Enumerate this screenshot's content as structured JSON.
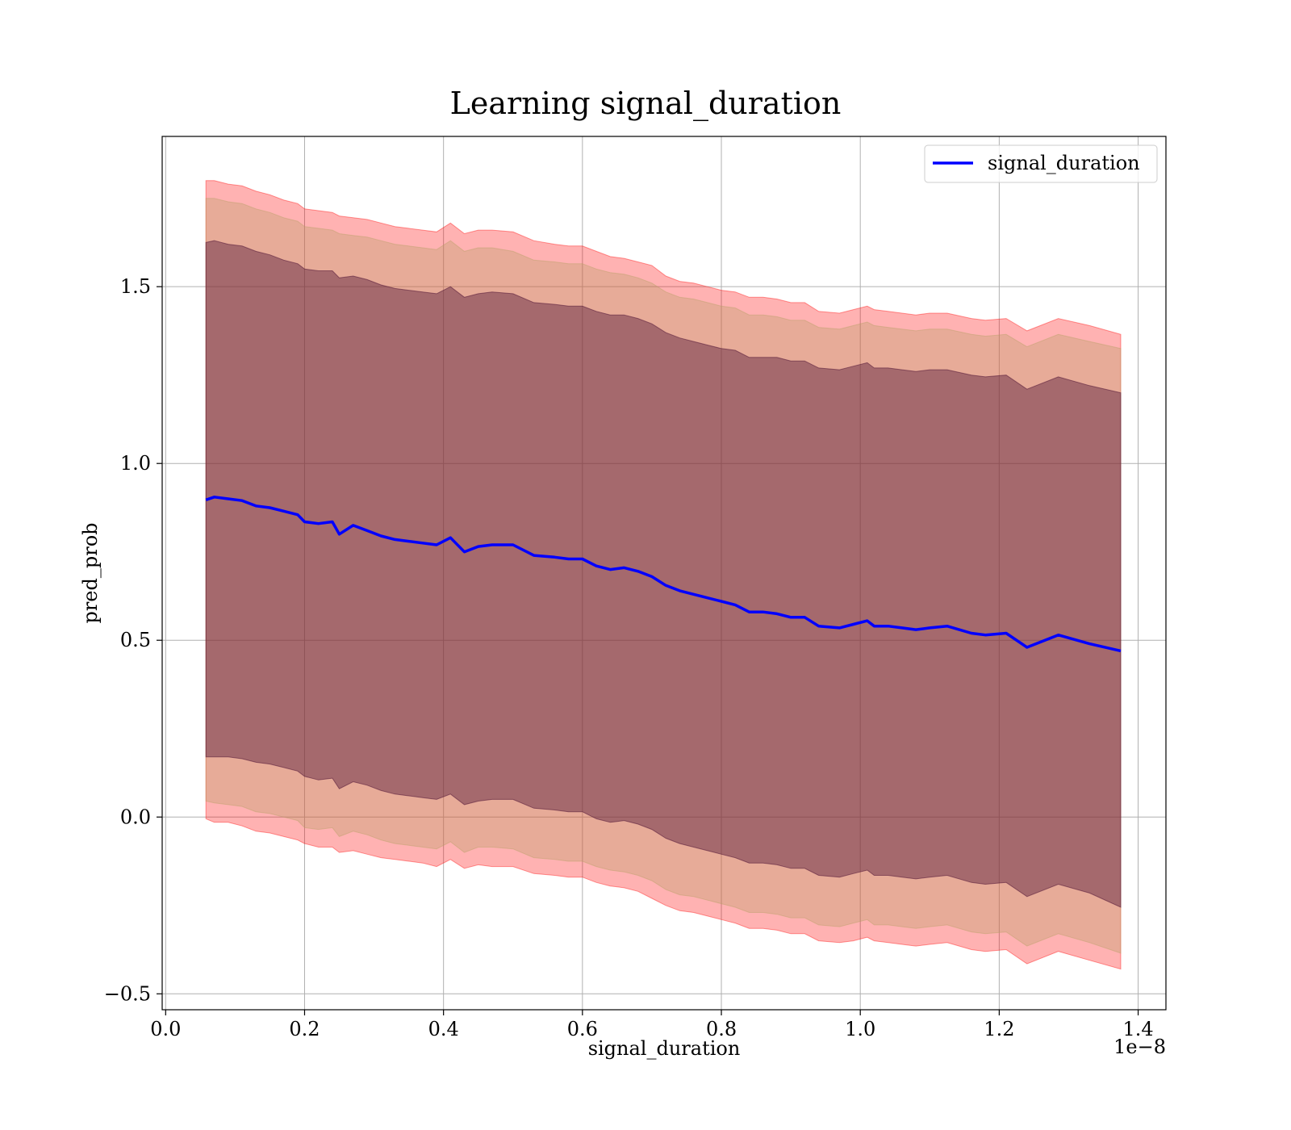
{
  "chart_data": {
    "type": "line",
    "title": "Learning signal_duration",
    "xlabel": "signal_duration",
    "ylabel": "pred_prob",
    "x_offset_label": "1e−8",
    "xlim": [
      -0.005,
      1.44
    ],
    "ylim": [
      -0.545,
      1.925
    ],
    "xticks": [
      0.0,
      0.2,
      0.4,
      0.6,
      0.8,
      1.0,
      1.2,
      1.4
    ],
    "xtick_labels": [
      "0.0",
      "0.2",
      "0.4",
      "0.6",
      "0.8",
      "1.0",
      "1.2",
      "1.4"
    ],
    "yticks": [
      -0.5,
      0.0,
      0.5,
      1.0,
      1.5
    ],
    "ytick_labels": [
      "−0.5",
      "0.0",
      "0.5",
      "1.0",
      "1.5"
    ],
    "grid": true,
    "legend_position": "top-right",
    "x": [
      0.058,
      0.07,
      0.09,
      0.11,
      0.13,
      0.15,
      0.17,
      0.19,
      0.2,
      0.22,
      0.24,
      0.25,
      0.27,
      0.29,
      0.31,
      0.33,
      0.35,
      0.37,
      0.39,
      0.41,
      0.43,
      0.45,
      0.47,
      0.5,
      0.53,
      0.56,
      0.58,
      0.6,
      0.62,
      0.64,
      0.66,
      0.68,
      0.7,
      0.72,
      0.74,
      0.76,
      0.78,
      0.8,
      0.82,
      0.84,
      0.86,
      0.88,
      0.9,
      0.92,
      0.94,
      0.97,
      0.99,
      1.01,
      1.02,
      1.04,
      1.06,
      1.08,
      1.1,
      1.125,
      1.16,
      1.18,
      1.21,
      1.24,
      1.285,
      1.33,
      1.375
    ],
    "series": [
      {
        "name": "signal_duration",
        "color": "#0000ff",
        "values": [
          0.897,
          0.905,
          0.9,
          0.895,
          0.88,
          0.875,
          0.865,
          0.855,
          0.835,
          0.83,
          0.835,
          0.8,
          0.825,
          0.81,
          0.795,
          0.785,
          0.78,
          0.775,
          0.77,
          0.79,
          0.75,
          0.765,
          0.77,
          0.77,
          0.74,
          0.735,
          0.73,
          0.73,
          0.71,
          0.7,
          0.705,
          0.695,
          0.68,
          0.655,
          0.64,
          0.63,
          0.62,
          0.61,
          0.6,
          0.58,
          0.58,
          0.575,
          0.565,
          0.565,
          0.54,
          0.535,
          0.545,
          0.555,
          0.54,
          0.54,
          0.535,
          0.53,
          0.535,
          0.54,
          0.52,
          0.515,
          0.52,
          0.48,
          0.515,
          0.49,
          0.47
        ]
      }
    ],
    "bands": [
      {
        "color": "#ff0000",
        "opacity": 0.3,
        "upper": [
          1.8,
          1.8,
          1.79,
          1.785,
          1.77,
          1.76,
          1.745,
          1.735,
          1.72,
          1.715,
          1.71,
          1.7,
          1.695,
          1.69,
          1.68,
          1.67,
          1.665,
          1.66,
          1.655,
          1.68,
          1.65,
          1.66,
          1.66,
          1.655,
          1.63,
          1.62,
          1.615,
          1.615,
          1.6,
          1.585,
          1.58,
          1.57,
          1.56,
          1.53,
          1.515,
          1.51,
          1.5,
          1.49,
          1.485,
          1.47,
          1.47,
          1.465,
          1.455,
          1.455,
          1.43,
          1.425,
          1.435,
          1.445,
          1.435,
          1.43,
          1.425,
          1.42,
          1.425,
          1.425,
          1.41,
          1.405,
          1.41,
          1.375,
          1.41,
          1.39,
          1.365
        ],
        "lower": [
          -0.005,
          -0.015,
          -0.015,
          -0.025,
          -0.04,
          -0.045,
          -0.055,
          -0.065,
          -0.075,
          -0.085,
          -0.085,
          -0.1,
          -0.095,
          -0.105,
          -0.115,
          -0.12,
          -0.125,
          -0.13,
          -0.14,
          -0.12,
          -0.145,
          -0.135,
          -0.14,
          -0.14,
          -0.16,
          -0.165,
          -0.17,
          -0.17,
          -0.185,
          -0.195,
          -0.2,
          -0.21,
          -0.23,
          -0.25,
          -0.265,
          -0.27,
          -0.28,
          -0.29,
          -0.3,
          -0.315,
          -0.315,
          -0.32,
          -0.33,
          -0.33,
          -0.35,
          -0.355,
          -0.35,
          -0.34,
          -0.35,
          -0.355,
          -0.36,
          -0.365,
          -0.36,
          -0.355,
          -0.375,
          -0.38,
          -0.375,
          -0.415,
          -0.38,
          -0.405,
          -0.43
        ]
      },
      {
        "color": "#b4a064",
        "opacity": 0.32,
        "upper": [
          1.75,
          1.75,
          1.74,
          1.735,
          1.72,
          1.71,
          1.695,
          1.685,
          1.67,
          1.665,
          1.66,
          1.65,
          1.645,
          1.64,
          1.63,
          1.62,
          1.615,
          1.61,
          1.605,
          1.63,
          1.6,
          1.61,
          1.61,
          1.6,
          1.575,
          1.57,
          1.565,
          1.565,
          1.55,
          1.54,
          1.535,
          1.525,
          1.51,
          1.485,
          1.47,
          1.465,
          1.455,
          1.445,
          1.44,
          1.42,
          1.42,
          1.415,
          1.405,
          1.405,
          1.385,
          1.38,
          1.39,
          1.4,
          1.39,
          1.385,
          1.38,
          1.375,
          1.38,
          1.38,
          1.365,
          1.36,
          1.365,
          1.33,
          1.365,
          1.345,
          1.325
        ],
        "lower": [
          0.045,
          0.04,
          0.035,
          0.03,
          0.015,
          0.01,
          0.0,
          -0.01,
          -0.03,
          -0.035,
          -0.03,
          -0.055,
          -0.04,
          -0.05,
          -0.065,
          -0.075,
          -0.08,
          -0.085,
          -0.09,
          -0.07,
          -0.1,
          -0.085,
          -0.085,
          -0.09,
          -0.115,
          -0.12,
          -0.125,
          -0.125,
          -0.14,
          -0.15,
          -0.155,
          -0.165,
          -0.18,
          -0.205,
          -0.22,
          -0.225,
          -0.235,
          -0.245,
          -0.255,
          -0.27,
          -0.27,
          -0.275,
          -0.285,
          -0.285,
          -0.305,
          -0.31,
          -0.3,
          -0.29,
          -0.305,
          -0.305,
          -0.31,
          -0.315,
          -0.31,
          -0.305,
          -0.325,
          -0.33,
          -0.325,
          -0.365,
          -0.33,
          -0.355,
          -0.385
        ]
      },
      {
        "color": "#4b0f32",
        "opacity": 0.42,
        "upper": [
          1.625,
          1.63,
          1.62,
          1.615,
          1.6,
          1.59,
          1.575,
          1.565,
          1.55,
          1.545,
          1.545,
          1.525,
          1.53,
          1.52,
          1.505,
          1.495,
          1.49,
          1.485,
          1.48,
          1.5,
          1.47,
          1.48,
          1.485,
          1.48,
          1.455,
          1.45,
          1.445,
          1.445,
          1.43,
          1.42,
          1.42,
          1.41,
          1.395,
          1.37,
          1.355,
          1.345,
          1.335,
          1.325,
          1.32,
          1.3,
          1.3,
          1.3,
          1.29,
          1.29,
          1.27,
          1.265,
          1.275,
          1.285,
          1.27,
          1.27,
          1.265,
          1.26,
          1.265,
          1.265,
          1.25,
          1.245,
          1.25,
          1.21,
          1.245,
          1.22,
          1.2
        ],
        "lower": [
          0.17,
          0.17,
          0.17,
          0.165,
          0.155,
          0.15,
          0.14,
          0.13,
          0.115,
          0.105,
          0.11,
          0.08,
          0.1,
          0.09,
          0.075,
          0.065,
          0.06,
          0.055,
          0.05,
          0.065,
          0.035,
          0.045,
          0.05,
          0.05,
          0.025,
          0.02,
          0.015,
          0.015,
          -0.005,
          -0.015,
          -0.01,
          -0.02,
          -0.035,
          -0.06,
          -0.075,
          -0.085,
          -0.095,
          -0.105,
          -0.115,
          -0.13,
          -0.13,
          -0.135,
          -0.145,
          -0.145,
          -0.165,
          -0.17,
          -0.16,
          -0.15,
          -0.165,
          -0.165,
          -0.17,
          -0.175,
          -0.17,
          -0.165,
          -0.185,
          -0.19,
          -0.185,
          -0.225,
          -0.19,
          -0.215,
          -0.255
        ]
      }
    ]
  }
}
